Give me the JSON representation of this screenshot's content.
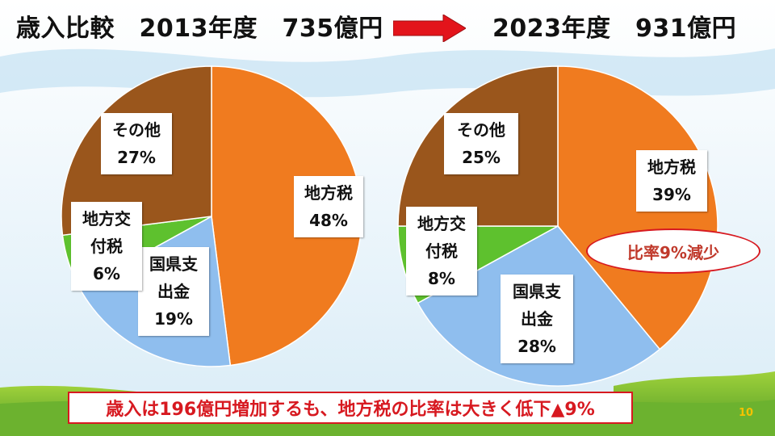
{
  "title_left": "歳入比較　2013年度　735億円",
  "title_right": "2023年度　931億円",
  "oval_note": "比率9%減少",
  "summary": "歳入は196億円増加するも、地方税の比率は大きく低下▲9%",
  "page_number": "10",
  "colors": {
    "local_tax": "#F07B1F",
    "national_pref": "#8FBEEE",
    "local_grant": "#5EC12E",
    "other": "#9A561C",
    "accent": "#D71920"
  },
  "chart_data": [
    {
      "type": "pie",
      "title": "2013年度　735億円",
      "slices": [
        {
          "label": "地方税",
          "value": 48
        },
        {
          "label": "国県支出金",
          "value": 19
        },
        {
          "label": "地方交付税",
          "value": 6
        },
        {
          "label": "その他",
          "value": 27
        }
      ],
      "slice_labels": [
        [
          "地方税",
          "48%"
        ],
        [
          "国県支",
          "出金",
          "19%"
        ],
        [
          "地方交",
          "付税",
          "6%"
        ],
        [
          "その他",
          "27%"
        ]
      ]
    },
    {
      "type": "pie",
      "title": "2023年度　931億円",
      "slices": [
        {
          "label": "地方税",
          "value": 39
        },
        {
          "label": "国県支出金",
          "value": 28
        },
        {
          "label": "地方交付税",
          "value": 8
        },
        {
          "label": "その他",
          "value": 25
        }
      ],
      "slice_labels": [
        [
          "地方税",
          "39%"
        ],
        [
          "国県支",
          "出金",
          "28%"
        ],
        [
          "地方交",
          "付税",
          "8%"
        ],
        [
          "その他",
          "25%"
        ]
      ]
    }
  ]
}
